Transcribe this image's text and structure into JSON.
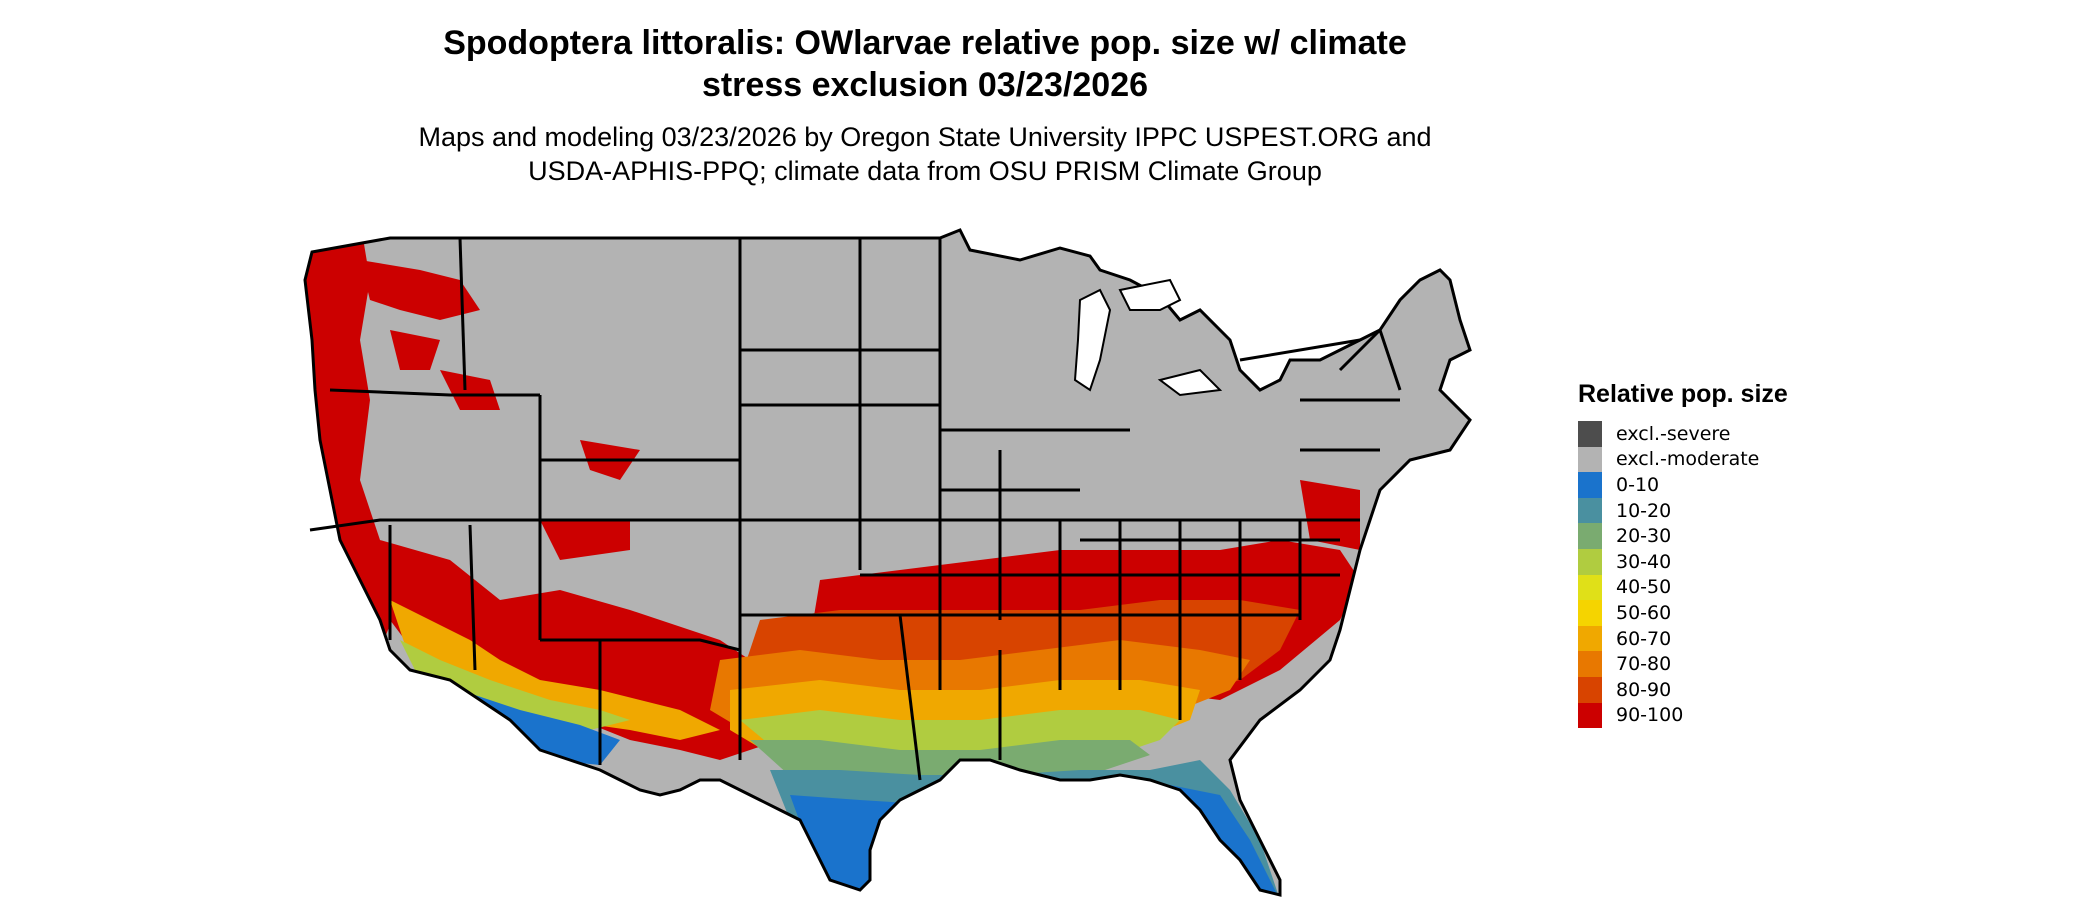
{
  "title": {
    "line1": "Spodoptera littoralis: OWlarvae relative pop. size w/ climate",
    "line2": "stress exclusion 03/23/2026"
  },
  "subtitle": {
    "line1": "Maps and modeling 03/23/2026 by Oregon State University IPPC USPEST.ORG and",
    "line2": "USDA-APHIS-PPQ; climate data from OSU PRISM Climate Group"
  },
  "legend": {
    "title": "Relative pop. size",
    "items": [
      {
        "label": "excl.-severe",
        "color": "#4d4d4d"
      },
      {
        "label": "excl.-moderate",
        "color": "#b3b3b3"
      },
      {
        "label": "0-10",
        "color": "#1a73cc"
      },
      {
        "label": "10-20",
        "color": "#4a90a0"
      },
      {
        "label": "20-30",
        "color": "#7aab70"
      },
      {
        "label": "30-40",
        "color": "#b0cc40"
      },
      {
        "label": "40-50",
        "color": "#e0e018"
      },
      {
        "label": "50-60",
        "color": "#f5d400"
      },
      {
        "label": "60-70",
        "color": "#f0a800"
      },
      {
        "label": "70-80",
        "color": "#e87800"
      },
      {
        "label": "80-90",
        "color": "#d84400"
      },
      {
        "label": "90-100",
        "color": "#cc0000"
      }
    ]
  },
  "map": {
    "region": "Contiguous United States",
    "boundary_color": "#000000"
  }
}
